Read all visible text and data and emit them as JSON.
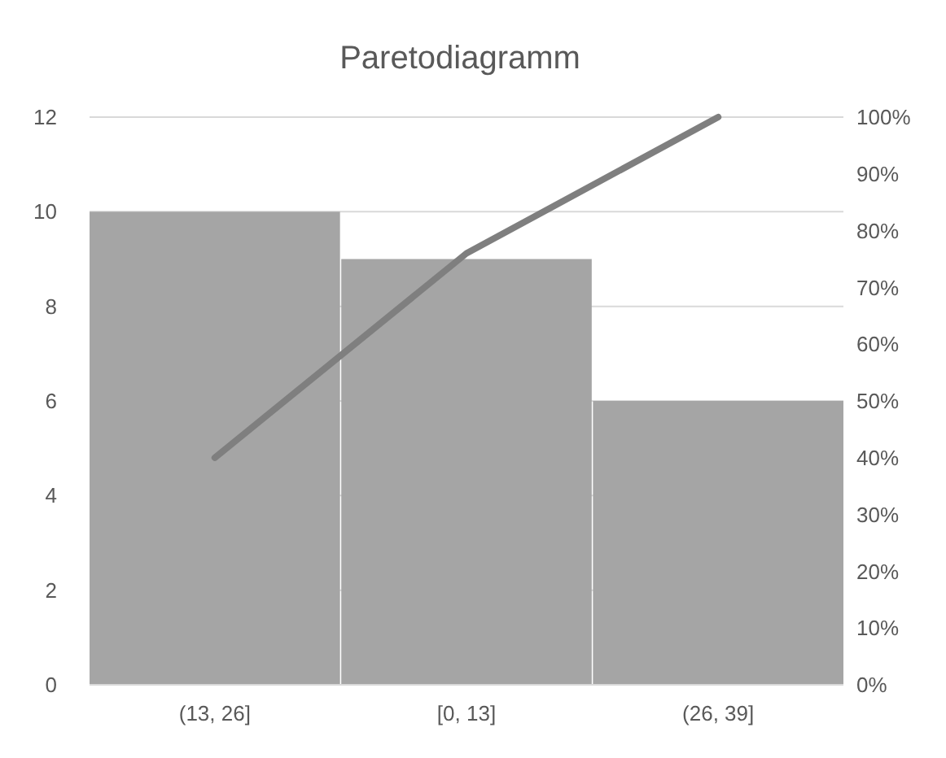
{
  "chart_data": {
    "type": "bar",
    "title": "Paretodiagramm",
    "categories": [
      "(13, 26]",
      "[0, 13]",
      "(26, 39]"
    ],
    "series": [
      {
        "color": "#a5a5a5",
        "values": [
          10,
          9,
          6
        ]
      },
      {
        "type": "line",
        "axis": "y2",
        "color": "#7f7f7f",
        "values": [
          40,
          76,
          100
        ]
      }
    ],
    "ylim": [
      0,
      12
    ],
    "yticks": [
      0,
      2,
      4,
      6,
      8,
      10,
      12
    ],
    "y2lim": [
      0,
      100
    ],
    "y2ticks": [
      {
        "value": 0,
        "label": "0%"
      },
      {
        "value": 10,
        "label": "10%"
      },
      {
        "value": 20,
        "label": "20%"
      },
      {
        "value": 30,
        "label": "30%"
      },
      {
        "value": 40,
        "label": "40%"
      },
      {
        "value": 50,
        "label": "50%"
      },
      {
        "value": 60,
        "label": "60%"
      },
      {
        "value": 70,
        "label": "70%"
      },
      {
        "value": 80,
        "label": "80%"
      },
      {
        "value": 90,
        "label": "90%"
      },
      {
        "value": 100,
        "label": "100%"
      }
    ],
    "grid": "y",
    "marker": "none"
  }
}
